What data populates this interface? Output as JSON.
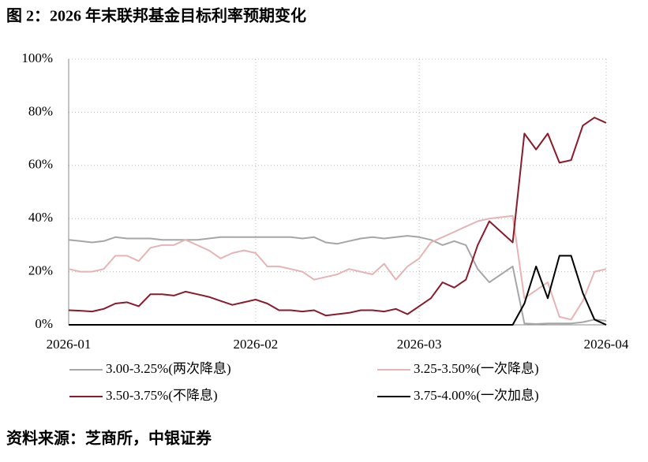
{
  "chart_data": {
    "type": "line",
    "title": "图 2：2026 年末联邦基金目标利率预期变化",
    "source": "资料来源：芝商所，中银证券",
    "categories": [
      "2026-01",
      null,
      null,
      null,
      null,
      null,
      null,
      null,
      null,
      null,
      null,
      null,
      null,
      null,
      null,
      null,
      "2026-02",
      null,
      null,
      null,
      null,
      null,
      null,
      null,
      null,
      null,
      null,
      null,
      null,
      null,
      "2026-03",
      null,
      null,
      null,
      null,
      null,
      null,
      null,
      null,
      null,
      null,
      null,
      null,
      null,
      null,
      null,
      "2026-04"
    ],
    "series": [
      {
        "name": "3.00-3.25%(两次降息)",
        "color": "#a6a6a6",
        "values": [
          32,
          31.5,
          31,
          31.5,
          33,
          32.5,
          32.5,
          32.5,
          32,
          32,
          32,
          32,
          32.5,
          33,
          33,
          33,
          33,
          33,
          33,
          33,
          32.5,
          33,
          31,
          30.5,
          31.5,
          32.5,
          33,
          32.5,
          33,
          33.5,
          33,
          32,
          30,
          31.5,
          30,
          21,
          16,
          19,
          22,
          0.5,
          0.3,
          0.5,
          0.5,
          0.5,
          1,
          2,
          1.5
        ]
      },
      {
        "name": "3.25-3.50%(一次降息)",
        "color": "#e6b4b4",
        "values": [
          21,
          20,
          20,
          21,
          26,
          26,
          24,
          29,
          30,
          30,
          32,
          30,
          28,
          25,
          27,
          28,
          27,
          22,
          22,
          21,
          20,
          17,
          18,
          19,
          21,
          20,
          19,
          23,
          17,
          22,
          25,
          31,
          33,
          35,
          37,
          39,
          40,
          40.5,
          41,
          10,
          13,
          16,
          3,
          2,
          9,
          20,
          21
        ]
      },
      {
        "name": "3.50-3.75%(不降息)",
        "color": "#8b1a2b",
        "values": [
          5.5,
          5.3,
          5,
          6,
          8,
          8.5,
          7,
          11.5,
          11.5,
          11,
          12.5,
          11.5,
          10.5,
          9,
          7.5,
          8.5,
          9.5,
          8,
          5.5,
          5.5,
          5,
          5.5,
          3.5,
          4,
          4.5,
          5.5,
          5.5,
          5,
          6,
          4,
          7,
          10,
          16,
          14,
          17,
          30,
          39,
          35,
          31,
          72,
          66,
          72,
          61,
          62,
          75,
          78,
          76
        ]
      },
      {
        "name": "3.75-4.00%(一次加息)",
        "color": "#000000",
        "values": [
          0,
          0,
          0,
          0,
          0,
          0,
          0,
          0,
          0,
          0,
          0,
          0,
          0,
          0,
          0,
          0,
          0,
          0,
          0,
          0,
          0,
          0,
          0,
          0,
          0,
          0,
          0,
          0,
          0,
          0,
          0,
          0,
          0,
          0,
          0,
          0,
          0,
          0,
          0,
          8,
          22,
          10,
          26,
          26,
          12,
          2,
          0
        ]
      }
    ],
    "ylim": [
      0,
      100
    ],
    "yticks": [
      {
        "value": 0,
        "label": "0%"
      },
      {
        "value": 20,
        "label": "20%"
      },
      {
        "value": 40,
        "label": "40%"
      },
      {
        "value": 60,
        "label": "60%"
      },
      {
        "value": 80,
        "label": "80%"
      },
      {
        "value": 100,
        "label": "100%"
      }
    ],
    "grid": true
  }
}
